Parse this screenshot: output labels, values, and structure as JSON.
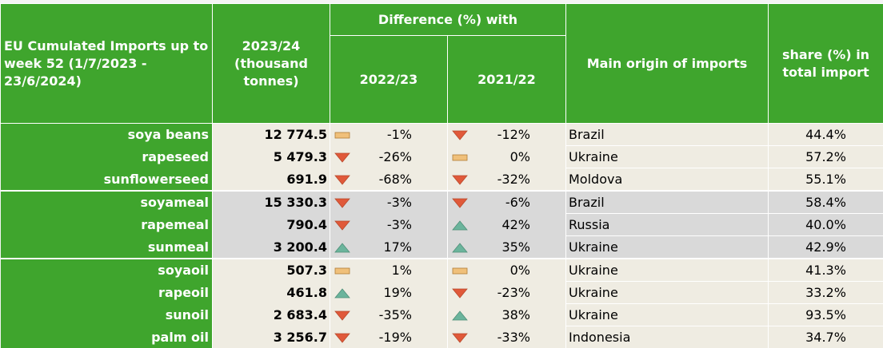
{
  "header": {
    "title": "EU Cumulated Imports up to week 52 (1/7/2023 - 23/6/2024)",
    "volume": "2023/24 (thousand tonnes)",
    "difference": "Difference (%) with",
    "prev1": "2022/23",
    "prev2": "2021/22",
    "origin": "Main origin of imports",
    "share": "share (%) in total import"
  },
  "colors": {
    "green": "#3fa52d",
    "down": "#e0593a",
    "up": "#6bb49c",
    "flat": "#f0c07a"
  },
  "rows": [
    {
      "product": "soya beans",
      "volume": "12 774.5",
      "d1": "-1%",
      "t1": "flat",
      "d2": "-12%",
      "t2": "down",
      "origin": "Brazil",
      "share": "44.4%"
    },
    {
      "product": "rapeseed",
      "volume": "5 479.3",
      "d1": "-26%",
      "t1": "down",
      "d2": "0%",
      "t2": "flat",
      "origin": "Ukraine",
      "share": "57.2%"
    },
    {
      "product": "sunflowerseed",
      "volume": "691.9",
      "d1": "-68%",
      "t1": "down",
      "d2": "-32%",
      "t2": "down",
      "origin": "Moldova",
      "share": "55.1%"
    },
    {
      "product": "soyameal",
      "volume": "15 330.3",
      "d1": "-3%",
      "t1": "down",
      "d2": "-6%",
      "t2": "down",
      "origin": "Brazil",
      "share": "58.4%"
    },
    {
      "product": "rapemeal",
      "volume": "790.4",
      "d1": "-3%",
      "t1": "down",
      "d2": "42%",
      "t2": "up",
      "origin": "Russia",
      "share": "40.0%"
    },
    {
      "product": "sunmeal",
      "volume": "3 200.4",
      "d1": "17%",
      "t1": "up",
      "d2": "35%",
      "t2": "up",
      "origin": "Ukraine",
      "share": "42.9%"
    },
    {
      "product": "soyaoil",
      "volume": "507.3",
      "d1": "1%",
      "t1": "flat",
      "d2": "0%",
      "t2": "flat",
      "origin": "Ukraine",
      "share": "41.3%"
    },
    {
      "product": "rapeoil",
      "volume": "461.8",
      "d1": "19%",
      "t1": "up",
      "d2": "-23%",
      "t2": "down",
      "origin": "Ukraine",
      "share": "33.2%"
    },
    {
      "product": "sunoil",
      "volume": "2 683.4",
      "d1": "-35%",
      "t1": "down",
      "d2": "38%",
      "t2": "up",
      "origin": "Ukraine",
      "share": "93.5%"
    },
    {
      "product": "palm oil",
      "volume": "3 256.7",
      "d1": "-19%",
      "t1": "down",
      "d2": "-33%",
      "t2": "down",
      "origin": "Indonesia",
      "share": "34.7%"
    }
  ]
}
